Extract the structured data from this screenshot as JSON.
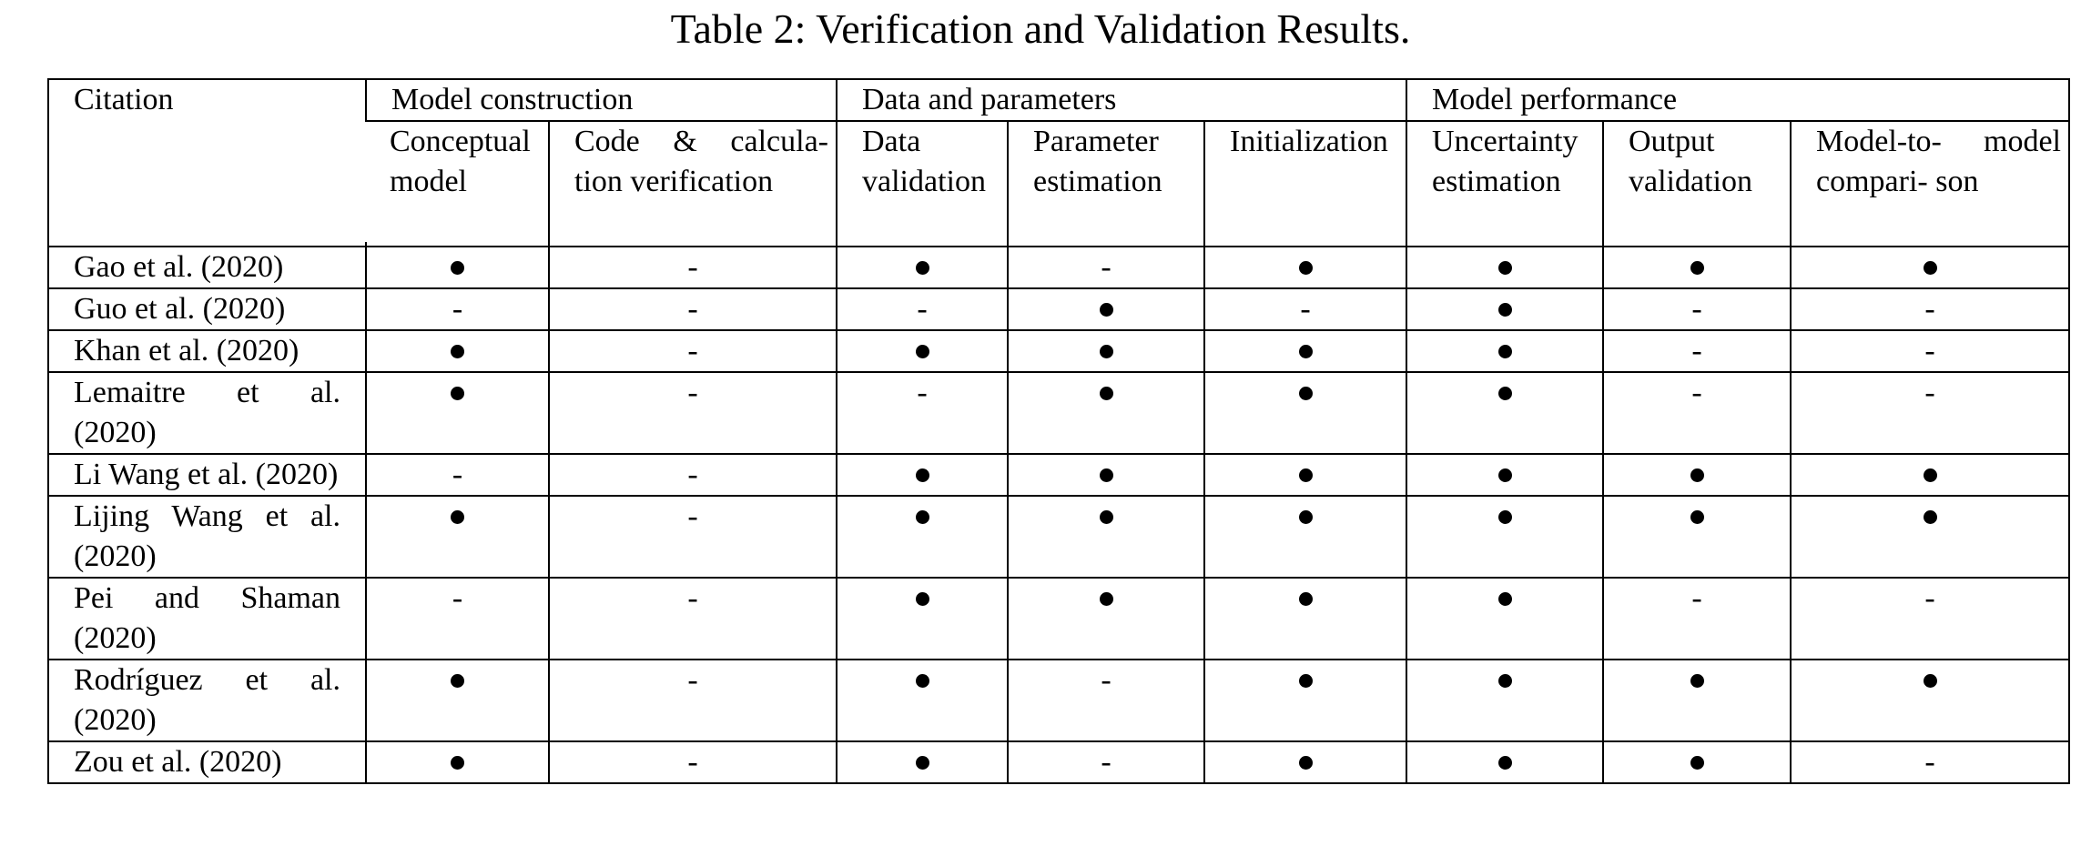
{
  "caption": "Table 2: Verification and Validation Results.",
  "header": {
    "citation": "Citation",
    "groups": [
      "Model construction",
      "Data and parameters",
      "Model performance"
    ],
    "columns": [
      "Conceptual model",
      "Code & calcula- tion verification",
      "Data validation",
      "Parameter estimation",
      "Initialization",
      "Uncertainty estimation",
      "Output validation",
      "Model-to- model compari- son"
    ]
  },
  "symbols": {
    "yes": "●",
    "no": "-"
  },
  "rows": [
    {
      "citation": "Gao et al. (2020)",
      "marks": [
        "●",
        "-",
        "●",
        "-",
        "●",
        "●",
        "●",
        "●"
      ]
    },
    {
      "citation": "Guo et al. (2020)",
      "marks": [
        "-",
        "-",
        "-",
        "●",
        "-",
        "●",
        "-",
        "-"
      ]
    },
    {
      "citation": "Khan et al. (2020)",
      "marks": [
        "●",
        "-",
        "●",
        "●",
        "●",
        "●",
        "-",
        "-"
      ]
    },
    {
      "citation": "Lemaitre et al. (2020)",
      "marks": [
        "●",
        "-",
        "-",
        "●",
        "●",
        "●",
        "-",
        "-"
      ]
    },
    {
      "citation": "Li Wang et al. (2020)",
      "marks": [
        "-",
        "-",
        "●",
        "●",
        "●",
        "●",
        "●",
        "●"
      ]
    },
    {
      "citation": "Lijing Wang et al. (2020)",
      "marks": [
        "●",
        "-",
        "●",
        "●",
        "●",
        "●",
        "●",
        "●"
      ]
    },
    {
      "citation": "Pei and Shaman (2020)",
      "marks": [
        "-",
        "-",
        "●",
        "●",
        "●",
        "●",
        "-",
        "-"
      ]
    },
    {
      "citation": "Rodríguez et al. (2020)",
      "marks": [
        "●",
        "-",
        "●",
        "-",
        "●",
        "●",
        "●",
        "●"
      ]
    },
    {
      "citation": "Zou et al. (2020)",
      "marks": [
        "●",
        "-",
        "●",
        "-",
        "●",
        "●",
        "●",
        "-"
      ]
    }
  ]
}
